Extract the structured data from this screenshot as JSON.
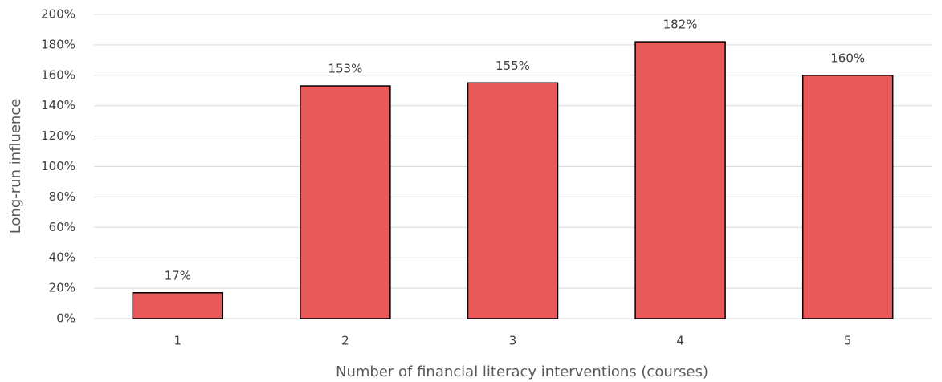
{
  "chart_data": {
    "type": "bar",
    "x_label": "Number of financial literacy interventions (courses)",
    "y_label": "Long-run influence",
    "categories": [
      "1",
      "2",
      "3",
      "4",
      "5"
    ],
    "values": [
      17,
      153,
      155,
      182,
      160
    ],
    "value_labels": [
      "17%",
      "153%",
      "155%",
      "182%",
      "160%"
    ],
    "color": "#e85a5a",
    "ylim": [
      0,
      200
    ],
    "yticks": [
      {
        "value": 0,
        "label": "0%"
      },
      {
        "value": 20,
        "label": "20%"
      },
      {
        "value": 40,
        "label": "40%"
      },
      {
        "value": 60,
        "label": "60%"
      },
      {
        "value": 80,
        "label": "80%"
      },
      {
        "value": 100,
        "label": "100%"
      },
      {
        "value": 120,
        "label": "120%"
      },
      {
        "value": 140,
        "label": "140%"
      },
      {
        "value": 160,
        "label": "160%"
      },
      {
        "value": 180,
        "label": "180%"
      },
      {
        "value": 200,
        "label": "200%"
      }
    ],
    "grid": true
  }
}
